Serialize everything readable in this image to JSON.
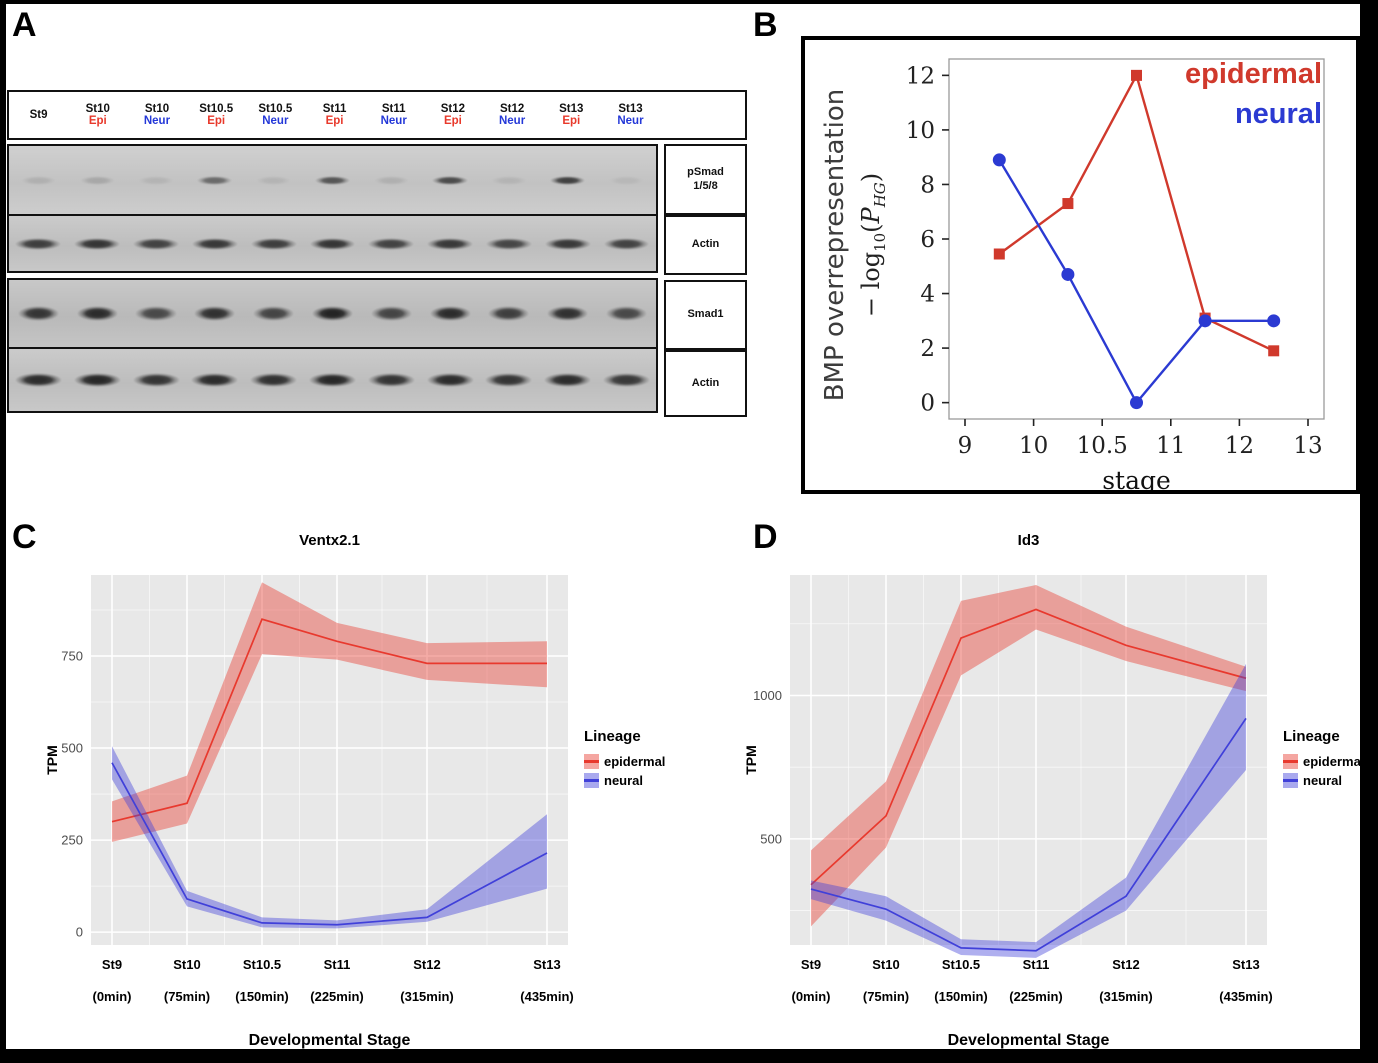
{
  "colors": {
    "epi_label": "#e8392b",
    "neur_label": "#2438d8"
  },
  "panels": {
    "a": "A",
    "b": "B",
    "c": "C",
    "d": "D"
  },
  "blot": {
    "lanes": [
      {
        "stage": "St9",
        "lineage": "",
        "type": ""
      },
      {
        "stage": "St10",
        "lineage": "Epi",
        "type": "epi"
      },
      {
        "stage": "St10",
        "lineage": "Neur",
        "type": "neur"
      },
      {
        "stage": "St10.5",
        "lineage": "Epi",
        "type": "epi"
      },
      {
        "stage": "St10.5",
        "lineage": "Neur",
        "type": "neur"
      },
      {
        "stage": "St11",
        "lineage": "Epi",
        "type": "epi"
      },
      {
        "stage": "St11",
        "lineage": "Neur",
        "type": "neur"
      },
      {
        "stage": "St12",
        "lineage": "Epi",
        "type": "epi"
      },
      {
        "stage": "St12",
        "lineage": "Neur",
        "type": "neur"
      },
      {
        "stage": "St13",
        "lineage": "Epi",
        "type": "epi"
      },
      {
        "stage": "St13",
        "lineage": "Neur",
        "type": "neur"
      }
    ],
    "rows": [
      {
        "label": "pSmad 1/5/8",
        "label_lines": [
          "pSmad",
          "1/5/8"
        ],
        "height": 68,
        "band_h": 9,
        "band_w": 60,
        "intensities": [
          0.1,
          0.15,
          0.08,
          0.5,
          0.08,
          0.62,
          0.1,
          0.68,
          0.08,
          0.74,
          0.06
        ]
      },
      {
        "label": "Actin",
        "label_lines": [
          "Actin"
        ],
        "height": 57,
        "band_h": 12,
        "band_w": 78,
        "intensities": [
          0.75,
          0.8,
          0.72,
          0.78,
          0.75,
          0.8,
          0.72,
          0.78,
          0.7,
          0.78,
          0.72
        ]
      },
      {
        "label": "Smad1",
        "label_lines": [
          "Smad1"
        ],
        "height": 67,
        "band_h": 15,
        "band_w": 70,
        "intensities": [
          0.8,
          0.85,
          0.68,
          0.82,
          0.7,
          0.9,
          0.7,
          0.85,
          0.74,
          0.82,
          0.68
        ]
      },
      {
        "label": "Actin",
        "label_lines": [
          "Actin"
        ],
        "height": 64,
        "band_h": 14,
        "band_w": 80,
        "intensities": [
          0.85,
          0.88,
          0.8,
          0.85,
          0.82,
          0.88,
          0.8,
          0.85,
          0.8,
          0.85,
          0.78
        ]
      }
    ]
  },
  "chart_data": [
    {
      "id": "bmp",
      "type": "line",
      "panel": "B",
      "ylabel": "BMP overrepresentation",
      "ylabel_math": {
        "minus_log": "− log",
        "sub": "10",
        "open": "(",
        "p": "P",
        "psub": "HG",
        "close": ")"
      },
      "xlabel": "stage",
      "xtick_labels": [
        "9",
        "10",
        "10.5",
        "11",
        "12",
        "13"
      ],
      "yticks": [
        0,
        2,
        4,
        6,
        8,
        10,
        12
      ],
      "ylim": [
        -0.6,
        12.6
      ],
      "layout_note": "data points plotted midway between consecutive stage ticks; legend top-right",
      "series": [
        {
          "name": "epidermal",
          "color": "#d0392c",
          "marker": "square",
          "x_stage": [
            9.5,
            10.25,
            10.75,
            11.5,
            12.5
          ],
          "xi": [
            0.5,
            1.5,
            2.5,
            3.5,
            4.5
          ],
          "y": [
            5.45,
            7.3,
            12.0,
            3.1,
            1.9
          ]
        },
        {
          "name": "neural",
          "color": "#2b3ad2",
          "marker": "circle",
          "x_stage": [
            9.5,
            10.25,
            10.75,
            11.5,
            12.5
          ],
          "xi": [
            0.5,
            1.5,
            2.5,
            3.5,
            4.5
          ],
          "y": [
            8.9,
            4.7,
            0.0,
            3.0,
            3.0
          ]
        }
      ]
    },
    {
      "id": "ventx",
      "type": "line-ribbon",
      "panel": "C",
      "title": "Ventx2.1",
      "ylabel": "TPM",
      "xlabel": "Developmental Stage",
      "legend_title": "Lineage",
      "categories": [
        "St9",
        "St10",
        "St10.5",
        "St11",
        "St12",
        "St13"
      ],
      "categories_sub": [
        "(0min)",
        "(75min)",
        "(150min)",
        "(225min)",
        "(315min)",
        "(435min)"
      ],
      "x_minutes": [
        0,
        75,
        150,
        225,
        315,
        435
      ],
      "yticks": [
        0,
        250,
        500,
        750
      ],
      "yminor": [
        125,
        375,
        625,
        875
      ],
      "ylim": [
        -35,
        970
      ],
      "grid": true,
      "series": [
        {
          "name": "epidermal",
          "color": "#e8392e",
          "mean": [
            300,
            350,
            850,
            790,
            730,
            730
          ],
          "upper": [
            355,
            425,
            950,
            840,
            785,
            790
          ],
          "lower": [
            245,
            295,
            755,
            740,
            685,
            665
          ]
        },
        {
          "name": "neural",
          "color": "#4040d9",
          "mean": [
            460,
            90,
            25,
            20,
            40,
            215
          ],
          "upper": [
            505,
            112,
            40,
            32,
            62,
            320
          ],
          "lower": [
            415,
            70,
            13,
            10,
            28,
            118
          ]
        }
      ]
    },
    {
      "id": "id3",
      "type": "line-ribbon",
      "panel": "D",
      "title": "Id3",
      "ylabel": "TPM",
      "xlabel": "Developmental Stage",
      "legend_title": "Lineage",
      "categories": [
        "St9",
        "St10",
        "St10.5",
        "St11",
        "St12",
        "St13"
      ],
      "categories_sub": [
        "(0min)",
        "(75min)",
        "(150min)",
        "(225min)",
        "(315min)",
        "(435min)"
      ],
      "x_minutes": [
        0,
        75,
        150,
        225,
        315,
        435
      ],
      "yticks": [
        500,
        1000
      ],
      "yminor": [
        250,
        750,
        1250
      ],
      "ylim": [
        130,
        1420
      ],
      "grid": true,
      "series": [
        {
          "name": "epidermal",
          "color": "#e8392e",
          "mean": [
            340,
            580,
            1200,
            1300,
            1175,
            1060
          ],
          "upper": [
            460,
            700,
            1330,
            1385,
            1240,
            1100
          ],
          "lower": [
            195,
            470,
            1070,
            1230,
            1120,
            1015
          ]
        },
        {
          "name": "neural",
          "color": "#4040d9",
          "mean": [
            325,
            255,
            120,
            110,
            300,
            920
          ],
          "upper": [
            355,
            300,
            150,
            140,
            365,
            1110
          ],
          "lower": [
            290,
            215,
            95,
            85,
            250,
            740
          ]
        }
      ]
    }
  ]
}
